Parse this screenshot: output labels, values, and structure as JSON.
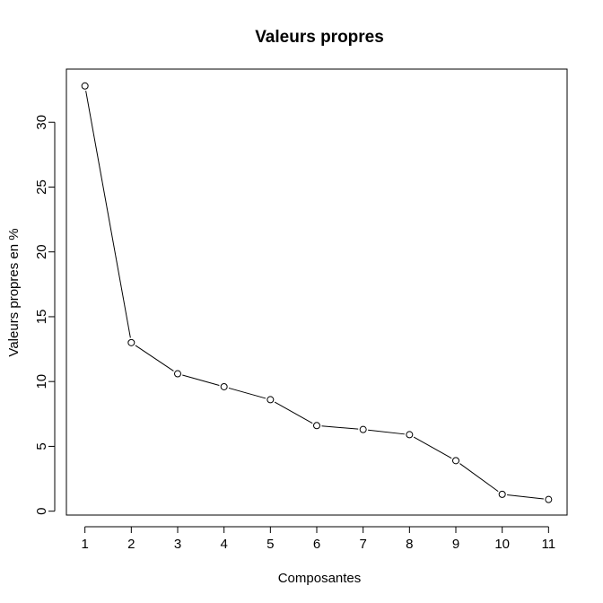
{
  "chart_data": {
    "type": "line",
    "title": "Valeurs propres",
    "xlabel": "Composantes",
    "ylabel": "Valeurs propres en %",
    "x": [
      1,
      2,
      3,
      4,
      5,
      6,
      7,
      8,
      9,
      10,
      11
    ],
    "values": [
      32.8,
      13.0,
      10.6,
      9.6,
      8.6,
      6.6,
      6.3,
      5.9,
      3.9,
      1.3,
      0.9
    ],
    "xticks": [
      "1",
      "2",
      "3",
      "4",
      "5",
      "6",
      "7",
      "8",
      "9",
      "10",
      "11"
    ],
    "yticks": [
      "0",
      "5",
      "10",
      "15",
      "20",
      "25",
      "30"
    ],
    "xlim": [
      0.6,
      11.4
    ],
    "ylim": [
      -0.3,
      34.1
    ],
    "grid": false,
    "marker": "open-circle",
    "colors": {
      "line": "#000000",
      "marker_fill": "#ffffff",
      "background": "#ffffff"
    }
  }
}
